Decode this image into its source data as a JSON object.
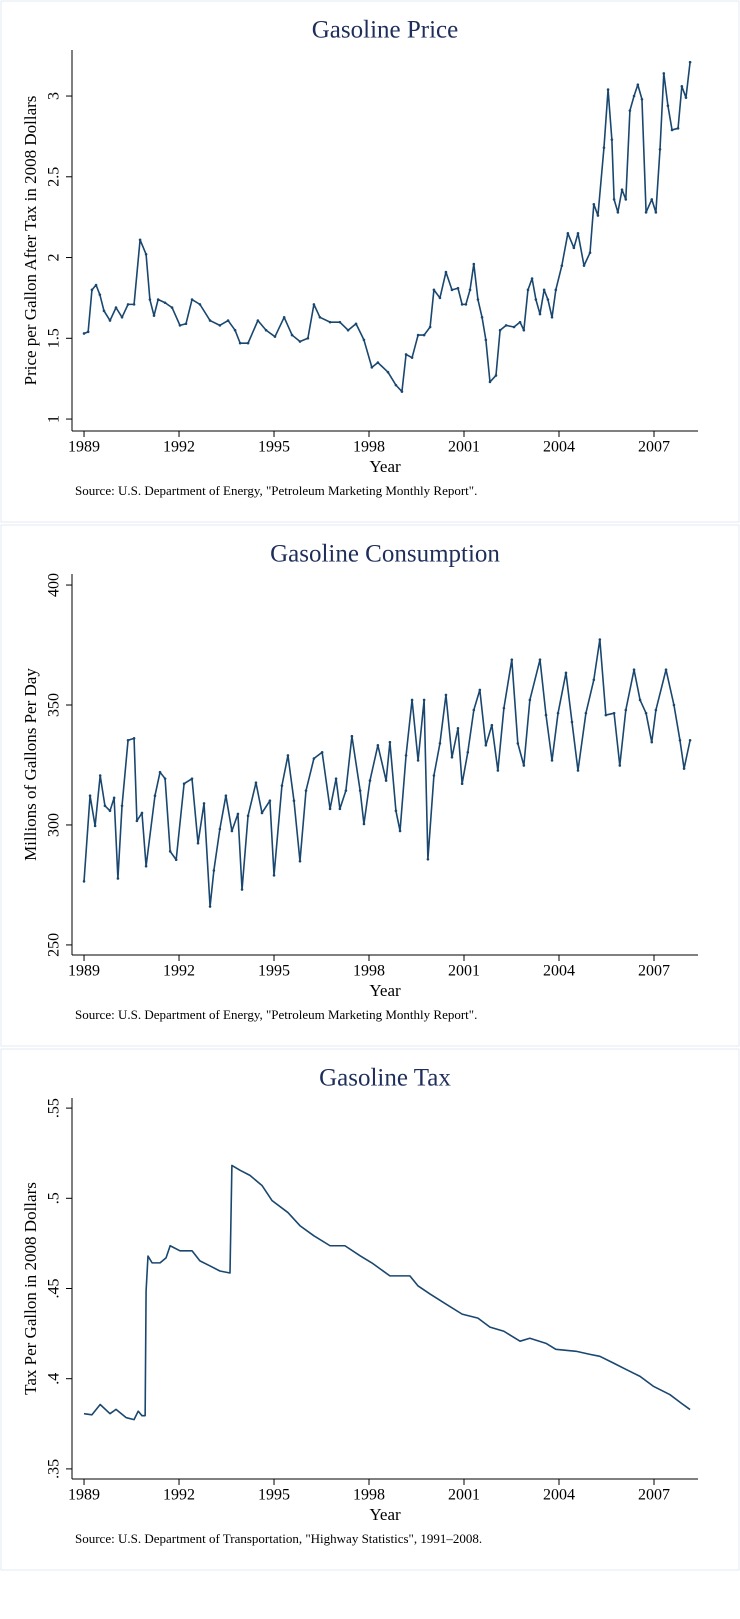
{
  "chart_data": [
    {
      "type": "line",
      "title": "Gasoline Price",
      "xlabel": "Year",
      "ylabel": "Price per Gallon After Tax in 2008 Dollars",
      "note": "Source: U.S. Department of Energy, \"Petroleum Marketing Monthly Report\".",
      "color": "#1a476f",
      "markers": true,
      "xlim": [
        1988.62,
        2008.39
      ],
      "ylim": [
        0.926,
        3.285
      ],
      "xticks": [
        1989,
        1992,
        1995,
        1998,
        2001,
        2004,
        2007
      ],
      "yticks": [
        1,
        1.5,
        2,
        2.5,
        3
      ],
      "x": [
        1989.0,
        1989.13,
        1989.25,
        1989.38,
        1989.5,
        1989.63,
        1989.82,
        1990.01,
        1990.2,
        1990.39,
        1990.58,
        1990.77,
        1990.96,
        1991.08,
        1991.21,
        1991.34,
        1991.56,
        1991.78,
        1992.03,
        1992.22,
        1992.41,
        1992.66,
        1992.98,
        1993.29,
        1993.55,
        1993.77,
        1993.93,
        1994.18,
        1994.49,
        1994.75,
        1995.03,
        1995.32,
        1995.57,
        1995.82,
        1996.07,
        1996.26,
        1996.45,
        1996.77,
        1997.08,
        1997.34,
        1997.59,
        1997.84,
        1998.09,
        1998.28,
        1998.6,
        1998.85,
        1999.04,
        1999.17,
        1999.36,
        1999.55,
        1999.74,
        1999.93,
        2000.05,
        2000.24,
        2000.43,
        2000.62,
        2000.81,
        2000.94,
        2001.06,
        2001.19,
        2001.31,
        2001.44,
        2001.57,
        2001.69,
        2001.82,
        2002.01,
        2002.14,
        2002.33,
        2002.58,
        2002.77,
        2002.89,
        2003.02,
        2003.15,
        2003.27,
        2003.4,
        2003.53,
        2003.65,
        2003.78,
        2003.9,
        2004.09,
        2004.28,
        2004.47,
        2004.6,
        2004.79,
        2004.98,
        2005.1,
        2005.23,
        2005.42,
        2005.55,
        2005.67,
        2005.74,
        2005.86,
        2005.99,
        2006.11,
        2006.24,
        2006.37,
        2006.49,
        2006.62,
        2006.75,
        2006.93,
        2007.06,
        2007.19,
        2007.31,
        2007.44,
        2007.57,
        2007.76,
        2007.88,
        2008.01,
        2008.14
      ],
      "values": [
        1.53,
        1.54,
        1.8,
        1.83,
        1.77,
        1.67,
        1.61,
        1.69,
        1.63,
        1.71,
        1.71,
        2.11,
        2.02,
        1.74,
        1.64,
        1.74,
        1.72,
        1.69,
        1.58,
        1.59,
        1.74,
        1.71,
        1.61,
        1.58,
        1.61,
        1.55,
        1.47,
        1.47,
        1.61,
        1.55,
        1.51,
        1.63,
        1.52,
        1.48,
        1.5,
        1.71,
        1.63,
        1.6,
        1.6,
        1.55,
        1.59,
        1.49,
        1.32,
        1.35,
        1.29,
        1.21,
        1.17,
        1.4,
        1.38,
        1.52,
        1.52,
        1.57,
        1.8,
        1.75,
        1.91,
        1.8,
        1.81,
        1.71,
        1.71,
        1.8,
        1.96,
        1.74,
        1.63,
        1.49,
        1.23,
        1.27,
        1.55,
        1.58,
        1.57,
        1.6,
        1.55,
        1.8,
        1.87,
        1.74,
        1.65,
        1.8,
        1.74,
        1.63,
        1.8,
        1.95,
        2.15,
        2.06,
        2.15,
        1.95,
        2.03,
        2.33,
        2.26,
        2.68,
        3.04,
        2.73,
        2.36,
        2.28,
        2.42,
        2.36,
        2.91,
        3.0,
        3.07,
        2.98,
        2.28,
        2.36,
        2.28,
        2.67,
        3.14,
        2.94,
        2.79,
        2.8,
        3.06,
        2.99,
        3.21
      ]
    },
    {
      "type": "line",
      "title": "Gasoline Consumption",
      "xlabel": "Year",
      "ylabel": "Millions of Gallons Per Day",
      "note": "Source: U.S. Department of Energy, \"Petroleum Marketing Monthly Report\".",
      "color": "#1a476f",
      "markers": true,
      "xlim": [
        1988.62,
        2008.39
      ],
      "ylim": [
        245.8,
        404.6
      ],
      "xticks": [
        1989,
        1992,
        1995,
        1998,
        2001,
        2004,
        2007
      ],
      "yticks": [
        250,
        300,
        350,
        400
      ],
      "x": [
        1989.0,
        1989.19,
        1989.35,
        1989.51,
        1989.66,
        1989.82,
        1989.95,
        1990.07,
        1990.2,
        1990.39,
        1990.58,
        1990.67,
        1990.83,
        1990.96,
        1991.24,
        1991.4,
        1991.56,
        1991.72,
        1991.91,
        1992.16,
        1992.41,
        1992.6,
        1992.79,
        1992.98,
        1993.1,
        1993.29,
        1993.48,
        1993.67,
        1993.86,
        1993.99,
        1994.18,
        1994.43,
        1994.62,
        1994.87,
        1995.0,
        1995.25,
        1995.44,
        1995.63,
        1995.82,
        1996.01,
        1996.26,
        1996.52,
        1996.77,
        1996.96,
        1997.08,
        1997.27,
        1997.46,
        1997.72,
        1997.84,
        1998.03,
        1998.28,
        1998.54,
        1998.66,
        1998.85,
        1998.98,
        1999.17,
        1999.36,
        1999.55,
        1999.74,
        1999.86,
        2000.05,
        2000.24,
        2000.43,
        2000.62,
        2000.81,
        2000.94,
        2001.12,
        2001.31,
        2001.5,
        2001.69,
        2001.88,
        2002.07,
        2002.26,
        2002.51,
        2002.7,
        2002.89,
        2003.08,
        2003.4,
        2003.59,
        2003.78,
        2003.97,
        2004.22,
        2004.41,
        2004.6,
        2004.85,
        2005.1,
        2005.29,
        2005.48,
        2005.74,
        2005.92,
        2006.11,
        2006.37,
        2006.56,
        2006.75,
        2006.93,
        2007.06,
        2007.38,
        2007.63,
        2007.82,
        2007.95,
        2008.14
      ],
      "values": [
        276.5,
        312.2,
        299.6,
        320.6,
        308,
        305.9,
        311.3,
        277.7,
        308,
        335.3,
        336.1,
        301.7,
        305,
        282.8,
        312.2,
        322,
        319.3,
        289,
        285.5,
        317.2,
        319.3,
        292.4,
        309,
        266,
        281,
        298.3,
        312.2,
        297.5,
        304.6,
        273.1,
        303.8,
        317.6,
        305,
        310.1,
        279,
        316.4,
        329,
        310.1,
        284.9,
        314.3,
        327.7,
        330.3,
        306.7,
        319.3,
        306.7,
        314.3,
        337,
        314.3,
        300.4,
        318.5,
        333.2,
        318.5,
        334.5,
        305.9,
        297.5,
        329,
        352.1,
        326.9,
        352.1,
        285.7,
        320.6,
        334,
        354.2,
        328.2,
        340.3,
        317.2,
        330.3,
        347.9,
        356.3,
        333.2,
        341.6,
        322.7,
        348.7,
        368.9,
        334,
        324.8,
        352.1,
        368.9,
        345.8,
        326.9,
        346.6,
        363.4,
        342.9,
        322.7,
        346.6,
        360.5,
        377.3,
        345.8,
        346.6,
        324.8,
        347.9,
        364.7,
        352.1,
        346.6,
        334.5,
        347.9,
        364.7,
        350,
        335.3,
        323.5,
        335.3
      ]
    },
    {
      "type": "line",
      "title": "Gasoline Tax",
      "xlabel": "Year",
      "ylabel": "Tax Per Gallon in 2008 Dollars",
      "note": "Source: U.S. Department of Transportation, \"Highway Statistics\", 1991–2008.",
      "color": "#1a476f",
      "markers": false,
      "xlim": [
        1988.62,
        2008.39
      ],
      "ylim": [
        0.3444,
        0.5556
      ],
      "xticks": [
        1989,
        1992,
        1995,
        1998,
        2001,
        2004,
        2007
      ],
      "yticks": [
        {
          "value": 0.35,
          "label": ".35"
        },
        {
          "value": 0.4,
          "label": ".4"
        },
        {
          "value": 0.45,
          "label": ".45"
        },
        {
          "value": 0.5,
          "label": ".5"
        },
        {
          "value": 0.55,
          "label": ".55"
        }
      ],
      "x": [
        1989.0,
        1989.25,
        1989.51,
        1989.82,
        1990.01,
        1990.33,
        1990.58,
        1990.71,
        1990.83,
        1990.93,
        1990.96,
        1991.02,
        1991.15,
        1991.4,
        1991.59,
        1991.72,
        1992.03,
        1992.41,
        1992.66,
        1992.98,
        1993.29,
        1993.61,
        1993.67,
        1993.93,
        1994.24,
        1994.62,
        1994.94,
        1995.44,
        1995.82,
        1996.26,
        1996.77,
        1997.24,
        1997.72,
        1998.09,
        1998.66,
        1999.29,
        1999.55,
        1999.93,
        2000.43,
        2000.94,
        2001.44,
        2001.82,
        2002.26,
        2002.77,
        2003.08,
        2003.59,
        2003.9,
        2004.54,
        2004.98,
        2005.29,
        2005.74,
        2006.11,
        2006.56,
        2006.99,
        2007.5,
        2007.88,
        2008.14
      ],
      "values": [
        0.3806,
        0.38,
        0.3857,
        0.3806,
        0.383,
        0.3784,
        0.3773,
        0.382,
        0.3795,
        0.3795,
        0.4486,
        0.468,
        0.4642,
        0.4642,
        0.467,
        0.4737,
        0.4709,
        0.4709,
        0.4653,
        0.4625,
        0.4597,
        0.4586,
        0.5182,
        0.5155,
        0.5127,
        0.5071,
        0.4987,
        0.4921,
        0.4848,
        0.4792,
        0.4737,
        0.4737,
        0.4681,
        0.4642,
        0.457,
        0.457,
        0.4514,
        0.4469,
        0.4414,
        0.4358,
        0.4336,
        0.4286,
        0.4263,
        0.4208,
        0.4224,
        0.4196,
        0.4163,
        0.4152,
        0.4135,
        0.4124,
        0.4085,
        0.4052,
        0.4013,
        0.3957,
        0.3912,
        0.3862,
        0.3829
      ]
    }
  ]
}
